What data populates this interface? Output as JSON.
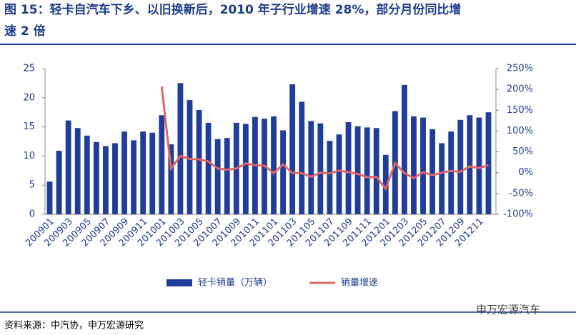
{
  "chart_data": {
    "type": "bar-line",
    "title_line1": "图 15：轻卡自汽车下乡、以旧换新后，2010 年子行业增速 28%，部分月份同比增",
    "title_line2": "速 2 倍",
    "categories": [
      "200901",
      null,
      "200903",
      null,
      "200905",
      null,
      "200907",
      null,
      "200909",
      null,
      "200911",
      null,
      "201001",
      null,
      "201003",
      null,
      "201005",
      null,
      "201007",
      null,
      "201009",
      null,
      "201011",
      null,
      "201101",
      null,
      "201103",
      null,
      "201105",
      null,
      "201107",
      null,
      "201109",
      null,
      "201111",
      null,
      "201201",
      null,
      "201203",
      null,
      "201205",
      null,
      "201207",
      null,
      "201209",
      null,
      "201211",
      null
    ],
    "series": [
      {
        "name": "轻卡销量（万辆）",
        "color": "#1f3d99",
        "kind": "bar",
        "values": [
          5.6,
          10.9,
          16.1,
          14.8,
          13.5,
          12.4,
          11.7,
          12.2,
          14.2,
          12.7,
          14.2,
          14.0,
          17.0,
          12.0,
          22.5,
          19.6,
          17.9,
          15.7,
          12.9,
          13.1,
          15.7,
          15.5,
          16.7,
          16.4,
          16.8,
          14.4,
          22.3,
          19.3,
          16.0,
          15.6,
          12.6,
          13.7,
          15.8,
          15.1,
          14.9,
          14.8,
          10.2,
          17.7,
          22.2,
          16.8,
          16.6,
          14.6,
          12.2,
          14.2,
          16.2,
          17.0,
          16.6,
          17.5
        ]
      },
      {
        "name": "销量增速",
        "color": "#e06666",
        "kind": "line",
        "axis": "y2",
        "values": [
          null,
          null,
          null,
          null,
          null,
          null,
          null,
          null,
          null,
          null,
          null,
          null,
          207,
          10,
          40,
          33,
          32,
          27,
          10,
          7,
          10,
          22,
          18,
          17,
          -1,
          20,
          -1,
          -1,
          -10,
          0,
          -2,
          5,
          1,
          -3,
          -11,
          -10,
          -39,
          23,
          -1,
          -13,
          1,
          -6,
          0,
          4,
          2,
          15,
          11,
          18
        ]
      }
    ],
    "ylim": [
      0,
      25
    ],
    "yticks": [
      0,
      5,
      10,
      15,
      20,
      25
    ],
    "y2lim": [
      -100,
      250
    ],
    "y2ticks": [
      {
        "value": -100,
        "label": "-100%"
      },
      {
        "value": -50,
        "label": "-50%"
      },
      {
        "value": 0,
        "label": "0%"
      },
      {
        "value": 50,
        "label": "50%"
      },
      {
        "value": 100,
        "label": "100%"
      },
      {
        "value": 150,
        "label": "150%"
      },
      {
        "value": 200,
        "label": "200%"
      },
      {
        "value": 250,
        "label": "250%"
      }
    ],
    "legend": "bottom"
  },
  "source": "资料来源：中汽协，申万宏源研究",
  "watermark": "申万宏源汽车"
}
